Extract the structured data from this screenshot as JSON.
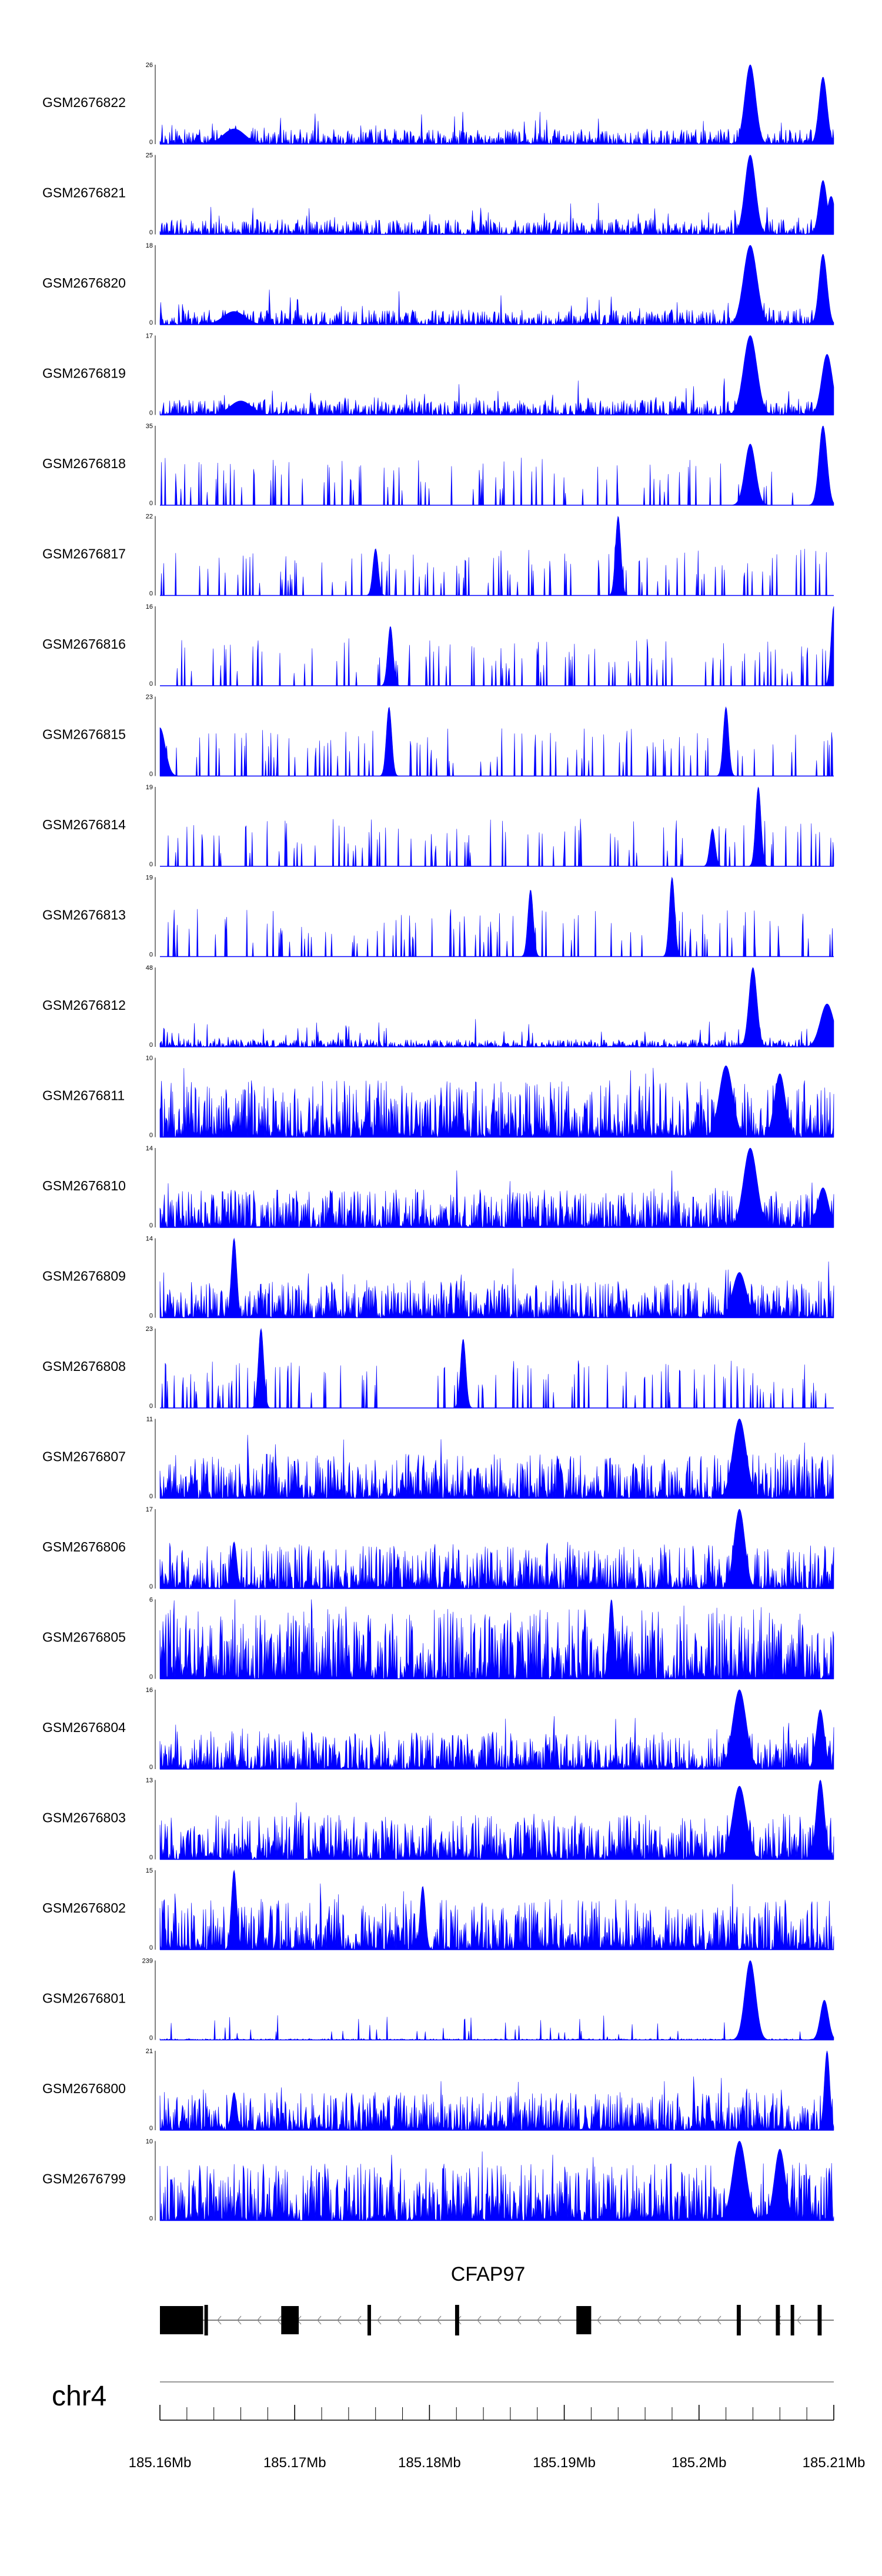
{
  "chart_data": {
    "type": "area",
    "chromosome": "chr4",
    "gene": {
      "name": "CFAP97",
      "strand": "-",
      "start": 185.16,
      "end": 185.21,
      "exons": [
        [
          185.16,
          185.1632
        ],
        [
          185.1633,
          185.1635
        ],
        [
          185.169,
          185.1703
        ],
        [
          185.1754,
          185.1756
        ],
        [
          185.1819,
          185.1822
        ],
        [
          185.1909,
          185.192
        ],
        [
          185.2028,
          185.2031
        ],
        [
          185.2057,
          185.206
        ],
        [
          185.2068,
          185.207
        ],
        [
          185.2088,
          185.2091
        ]
      ]
    },
    "axis": {
      "xlim": [
        185.16,
        185.21
      ],
      "ticks": [
        185.16,
        185.17,
        185.18,
        185.19,
        185.2,
        185.21
      ],
      "tick_labels": [
        "185.16Mb",
        "185.17Mb",
        "185.18Mb",
        "185.19Mb",
        "185.2Mb",
        "185.21Mb"
      ],
      "minor_step": 0.002
    },
    "color": "#0000ff",
    "series": [
      {
        "name": "GSM2676822",
        "ylim": [
          0,
          26
        ],
        "max_label": "26",
        "min_label": "0",
        "peaks": [
          [
            185.2038,
            26,
            0.0004
          ],
          [
            185.2092,
            22,
            0.0003
          ],
          [
            185.1655,
            5,
            0.0008
          ]
        ],
        "baseline": 0.12,
        "sparse": false,
        "seed": 11
      },
      {
        "name": "GSM2676821",
        "ylim": [
          0,
          25
        ],
        "max_label": "25",
        "min_label": "0",
        "peaks": [
          [
            185.2038,
            25,
            0.0004
          ],
          [
            185.2092,
            17,
            0.0003
          ],
          [
            185.2098,
            12,
            0.0003
          ]
        ],
        "baseline": 0.12,
        "sparse": false,
        "seed": 12
      },
      {
        "name": "GSM2676820",
        "ylim": [
          0,
          18
        ],
        "max_label": "18",
        "min_label": "0",
        "peaks": [
          [
            185.2038,
            18,
            0.0005
          ],
          [
            185.2092,
            16,
            0.0003
          ],
          [
            185.1655,
            3,
            0.0008
          ]
        ],
        "baseline": 0.12,
        "sparse": false,
        "seed": 13
      },
      {
        "name": "GSM2676819",
        "ylim": [
          0,
          17
        ],
        "max_label": "17",
        "min_label": "0",
        "peaks": [
          [
            185.2038,
            17,
            0.0005
          ],
          [
            185.2095,
            13,
            0.0004
          ],
          [
            185.166,
            3,
            0.0008
          ]
        ],
        "baseline": 0.12,
        "sparse": false,
        "seed": 14
      },
      {
        "name": "GSM2676818",
        "ylim": [
          0,
          35
        ],
        "max_label": "35",
        "min_label": "0",
        "peaks": [
          [
            185.2038,
            27,
            0.0004
          ],
          [
            185.2092,
            35,
            0.0003
          ]
        ],
        "baseline": 0.14,
        "sparse": true,
        "seed": 15
      },
      {
        "name": "GSM2676817",
        "ylim": [
          0,
          22
        ],
        "max_label": "22",
        "min_label": "0",
        "peaks": [
          [
            185.194,
            22,
            0.0002
          ],
          [
            185.176,
            13,
            0.0002
          ]
        ],
        "baseline": 0.25,
        "sparse": true,
        "seed": 16
      },
      {
        "name": "GSM2676816",
        "ylim": [
          0,
          16
        ],
        "max_label": "16",
        "min_label": "0",
        "peaks": [
          [
            185.1771,
            12,
            0.0002
          ],
          [
            185.21,
            16,
            0.0002
          ]
        ],
        "baseline": 0.35,
        "sparse": true,
        "seed": 17
      },
      {
        "name": "GSM2676815",
        "ylim": [
          0,
          23
        ],
        "max_label": "23",
        "min_label": "0",
        "peaks": [
          [
            185.16,
            14,
            0.0004
          ],
          [
            185.177,
            20,
            0.0002
          ],
          [
            185.202,
            20,
            0.0002
          ]
        ],
        "baseline": 0.4,
        "sparse": true,
        "seed": 18
      },
      {
        "name": "GSM2676814",
        "ylim": [
          0,
          19
        ],
        "max_label": "19",
        "min_label": "0",
        "peaks": [
          [
            185.2044,
            19,
            0.0002
          ],
          [
            185.201,
            9,
            0.0002
          ]
        ],
        "baseline": 0.3,
        "sparse": true,
        "seed": 19
      },
      {
        "name": "GSM2676813",
        "ylim": [
          0,
          19
        ],
        "max_label": "19",
        "min_label": "0",
        "peaks": [
          [
            185.198,
            19,
            0.0002
          ],
          [
            185.1875,
            16,
            0.0002
          ]
        ],
        "baseline": 0.45,
        "sparse": true,
        "seed": 20
      },
      {
        "name": "GSM2676812",
        "ylim": [
          0,
          48
        ],
        "max_label": "48",
        "min_label": "0",
        "peaks": [
          [
            185.204,
            48,
            0.0003
          ],
          [
            185.2095,
            26,
            0.0005
          ]
        ],
        "baseline": 0.06,
        "sparse": false,
        "seed": 21
      },
      {
        "name": "GSM2676811",
        "ylim": [
          0,
          10
        ],
        "max_label": "10",
        "min_label": "0",
        "peaks": [
          [
            185.202,
            9,
            0.0005
          ],
          [
            185.206,
            8,
            0.0004
          ]
        ],
        "baseline": 0.45,
        "sparse": false,
        "seed": 22
      },
      {
        "name": "GSM2676810",
        "ylim": [
          0,
          14
        ],
        "max_label": "14",
        "min_label": "0",
        "peaks": [
          [
            185.2038,
            14,
            0.0005
          ],
          [
            185.2092,
            7,
            0.0004
          ]
        ],
        "baseline": 0.3,
        "sparse": false,
        "seed": 23
      },
      {
        "name": "GSM2676809",
        "ylim": [
          0,
          14
        ],
        "max_label": "14",
        "min_label": "0",
        "peaks": [
          [
            185.1655,
            14,
            0.0002
          ],
          [
            185.203,
            8,
            0.0005
          ]
        ],
        "baseline": 0.3,
        "sparse": false,
        "seed": 24
      },
      {
        "name": "GSM2676808",
        "ylim": [
          0,
          23
        ],
        "max_label": "23",
        "min_label": "0",
        "peaks": [
          [
            185.1675,
            23,
            0.0002
          ],
          [
            185.1825,
            20,
            0.0002
          ]
        ],
        "baseline": 0.35,
        "sparse": true,
        "seed": 25
      },
      {
        "name": "GSM2676807",
        "ylim": [
          0,
          11
        ],
        "max_label": "11",
        "min_label": "0",
        "peaks": [
          [
            185.203,
            11,
            0.0005
          ]
        ],
        "baseline": 0.35,
        "sparse": false,
        "seed": 26
      },
      {
        "name": "GSM2676806",
        "ylim": [
          0,
          17
        ],
        "max_label": "17",
        "min_label": "0",
        "peaks": [
          [
            185.203,
            17,
            0.0004
          ],
          [
            185.1655,
            10,
            0.0002
          ]
        ],
        "baseline": 0.35,
        "sparse": false,
        "seed": 27
      },
      {
        "name": "GSM2676805",
        "ylim": [
          0,
          6
        ],
        "max_label": "6",
        "min_label": "0",
        "peaks": [
          [
            185.1935,
            6,
            0.0002
          ]
        ],
        "baseline": 0.55,
        "sparse": false,
        "seed": 28
      },
      {
        "name": "GSM2676804",
        "ylim": [
          0,
          16
        ],
        "max_label": "16",
        "min_label": "0",
        "peaks": [
          [
            185.203,
            16,
            0.0005
          ],
          [
            185.209,
            12,
            0.0003
          ]
        ],
        "baseline": 0.3,
        "sparse": false,
        "seed": 29
      },
      {
        "name": "GSM2676803",
        "ylim": [
          0,
          13
        ],
        "max_label": "13",
        "min_label": "0",
        "peaks": [
          [
            185.203,
            12,
            0.0005
          ],
          [
            185.209,
            13,
            0.0003
          ]
        ],
        "baseline": 0.35,
        "sparse": false,
        "seed": 30
      },
      {
        "name": "GSM2676802",
        "ylim": [
          0,
          15
        ],
        "max_label": "15",
        "min_label": "0",
        "peaks": [
          [
            185.1655,
            15,
            0.0002
          ],
          [
            185.1795,
            12,
            0.0002
          ]
        ],
        "baseline": 0.4,
        "sparse": false,
        "seed": 31
      },
      {
        "name": "GSM2676801",
        "ylim": [
          0,
          239
        ],
        "max_label": "239",
        "min_label": "0",
        "peaks": [
          [
            185.2038,
            239,
            0.0004
          ],
          [
            185.2093,
            120,
            0.0003
          ]
        ],
        "baseline": 0.01,
        "sparse": false,
        "seed": 32
      },
      {
        "name": "GSM2676800",
        "ylim": [
          0,
          21
        ],
        "max_label": "21",
        "min_label": "0",
        "peaks": [
          [
            185.2095,
            21,
            0.0002
          ],
          [
            185.1655,
            10,
            0.0002
          ]
        ],
        "baseline": 0.3,
        "sparse": false,
        "seed": 33
      },
      {
        "name": "GSM2676799",
        "ylim": [
          0,
          10
        ],
        "max_label": "10",
        "min_label": "0",
        "peaks": [
          [
            185.203,
            10,
            0.0005
          ],
          [
            185.206,
            9,
            0.0004
          ]
        ],
        "baseline": 0.45,
        "sparse": false,
        "seed": 34
      }
    ]
  }
}
